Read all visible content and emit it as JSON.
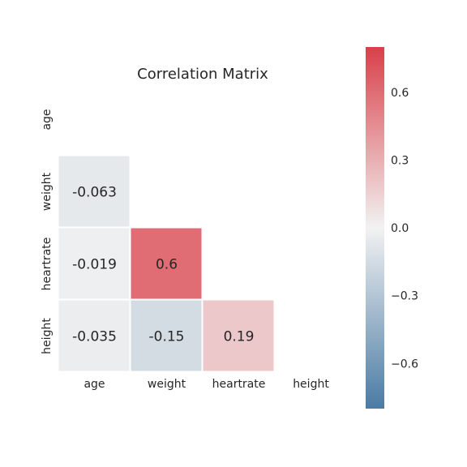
{
  "chart_data": {
    "type": "heatmap",
    "title": "Correlation Matrix",
    "row_labels": [
      "age",
      "weight",
      "heartrate",
      "height"
    ],
    "col_labels": [
      "age",
      "weight",
      "heartrate",
      "height"
    ],
    "mask": "upper-triangle-and-diagonal",
    "cells": [
      {
        "row": 1,
        "col": 0,
        "value": -0.063,
        "label": "-0.063"
      },
      {
        "row": 2,
        "col": 0,
        "value": -0.019,
        "label": "-0.019"
      },
      {
        "row": 2,
        "col": 1,
        "value": 0.6,
        "label": "0.6"
      },
      {
        "row": 3,
        "col": 0,
        "value": -0.035,
        "label": "-0.035"
      },
      {
        "row": 3,
        "col": 1,
        "value": -0.15,
        "label": "-0.15"
      },
      {
        "row": 3,
        "col": 2,
        "value": 0.19,
        "label": "0.19"
      }
    ],
    "colorbar": {
      "vmin": -0.8,
      "vmax": 0.8,
      "ticks": [
        0.6,
        0.3,
        0.0,
        -0.3,
        -0.6
      ],
      "tick_labels": [
        "0.6",
        "0.3",
        "0.0",
        "−0.3",
        "−0.6"
      ],
      "colormap": "diverging blue-white-red",
      "color_low": "#4a7ba4",
      "color_mid": "#f2f2f2",
      "color_high": "#d94049"
    },
    "grid": false,
    "legend": "right (colorbar)"
  }
}
